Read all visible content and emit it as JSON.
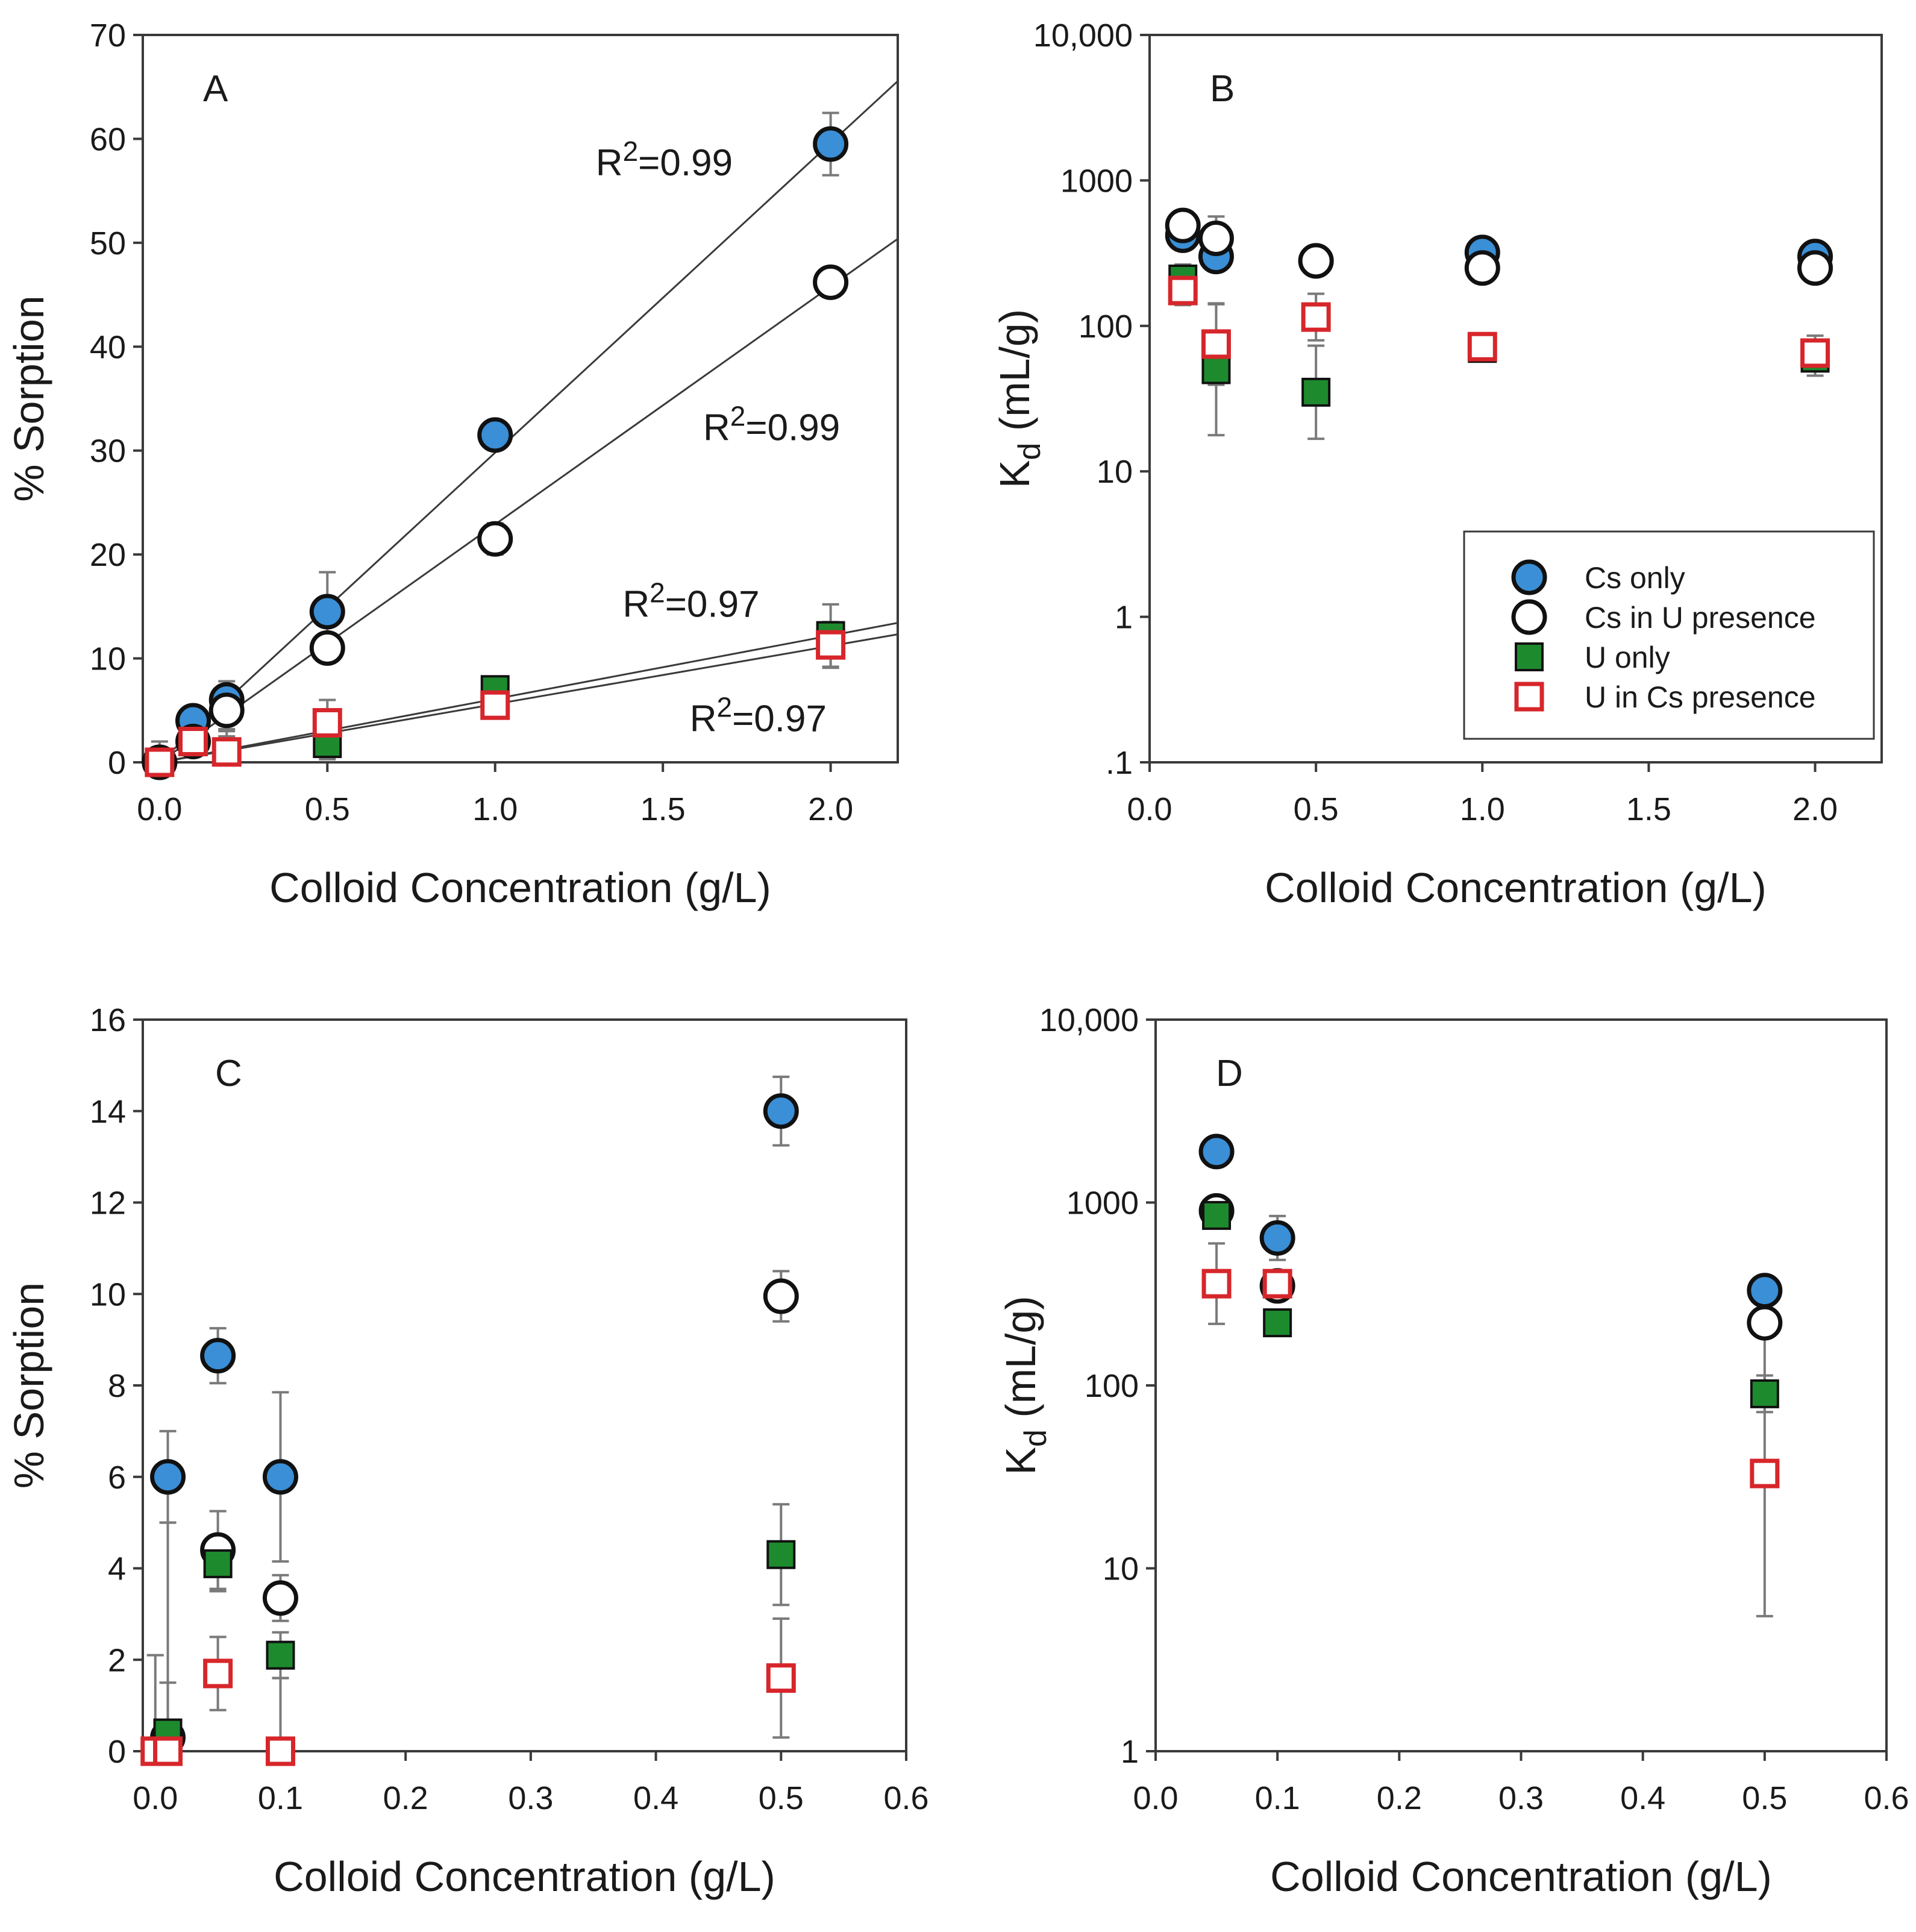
{
  "figure_colors": {
    "cs_only": "#3a8fd6",
    "cs_in_u": "#ffffff",
    "u_only": "#1e8a2e",
    "u_in_cs": "#ffffff",
    "u_in_cs_edge": "#d7262b",
    "marker_edge": "#111111"
  },
  "legend": {
    "items": [
      "Cs only",
      "Cs in U presence",
      "U only",
      "U in Cs presence"
    ]
  },
  "chart_data": [
    {
      "id": "A",
      "type": "scatter",
      "panel_label": "A",
      "xlabel": "Colloid Concentration (g/L)",
      "ylabel": "% Sorption",
      "y_scale": "linear",
      "xlim": [
        -0.05,
        2.2
      ],
      "ylim": [
        0,
        70
      ],
      "x_ticks": [
        0.0,
        0.5,
        1.0,
        1.5,
        2.0
      ],
      "x_tick_labels": [
        "0.0",
        "0.5",
        "1.0",
        "1.5",
        "2.0"
      ],
      "y_ticks": [
        0,
        10,
        20,
        30,
        40,
        50,
        60,
        70
      ],
      "y_tick_labels": [
        "0",
        "10",
        "20",
        "30",
        "40",
        "50",
        "60",
        "70"
      ],
      "series": [
        {
          "name": "Cs only",
          "key": "cs_only",
          "marker": "circle",
          "x": [
            0,
            0.1,
            0.2,
            0.5,
            1.0,
            2.0
          ],
          "y": [
            0,
            4,
            6,
            14.5,
            31.5,
            59.5
          ],
          "err": [
            2,
            1,
            1.8,
            3.8,
            0.8,
            3
          ]
        },
        {
          "name": "Cs in U presence",
          "key": "cs_in_u",
          "marker": "circle",
          "x": [
            0,
            0.1,
            0.2,
            0.5,
            1.0,
            2.0
          ],
          "y": [
            0,
            2,
            5,
            11,
            21.5,
            46.2
          ],
          "err": [
            1,
            1,
            1.8,
            0.8,
            1.5,
            0.8
          ]
        },
        {
          "name": "U only",
          "key": "u_only",
          "marker": "square",
          "x": [
            0,
            0.1,
            0.2,
            0.5,
            1.0,
            2.0
          ],
          "y": [
            0,
            2,
            1,
            1.8,
            7,
            12.2
          ],
          "err": [
            1,
            0.8,
            2,
            1.5,
            0.8,
            3
          ]
        },
        {
          "name": "U in Cs presence",
          "key": "u_in_cs",
          "marker": "square",
          "x": [
            0,
            0.1,
            0.2,
            0.5,
            1.0,
            2.0
          ],
          "y": [
            0,
            2,
            1,
            3.8,
            5.5,
            11.3
          ],
          "err": [
            1,
            0.8,
            1.5,
            2.2,
            0.8,
            2.2
          ]
        }
      ],
      "fit_lines": [
        {
          "series": "Cs only",
          "slope": 29.8,
          "intercept": 0
        },
        {
          "series": "Cs in U presence",
          "slope": 22.9,
          "intercept": 0
        },
        {
          "series": "U only",
          "slope": 6.1,
          "intercept": 0
        },
        {
          "series": "U in Cs presence",
          "slope": 5.6,
          "intercept": 0
        }
      ],
      "annotations": [
        {
          "text_base": "R",
          "sup": "2",
          "text_rest": "=0.99",
          "x": 1.3,
          "y": 56.5
        },
        {
          "text_base": "R",
          "sup": "2",
          "text_rest": "=0.99",
          "x": 1.62,
          "y": 31
        },
        {
          "text_base": "R",
          "sup": "2",
          "text_rest": "=0.97",
          "x": 1.38,
          "y": 14
        },
        {
          "text_base": "R",
          "sup": "2",
          "text_rest": "=0.97",
          "x": 1.58,
          "y": 3
        }
      ]
    },
    {
      "id": "B",
      "type": "scatter",
      "panel_label": "B",
      "xlabel": "Colloid Concentration (g/L)",
      "ylabel_base": "K",
      "ylabel_sub": "d",
      "ylabel_rest": " (mL/g)",
      "y_scale": "log",
      "xlim": [
        0,
        2.2
      ],
      "ylim": [
        0.1,
        10000
      ],
      "x_ticks": [
        0.0,
        0.5,
        1.0,
        1.5,
        2.0
      ],
      "x_tick_labels": [
        "0.0",
        "0.5",
        "1.0",
        "1.5",
        "2.0"
      ],
      "y_ticks": [
        0.1,
        1,
        10,
        100,
        1000,
        10000
      ],
      "y_tick_labels": [
        ".1",
        "1",
        "10",
        "100",
        "1000",
        "10,000"
      ],
      "legend_position": "bottom-right",
      "series": [
        {
          "name": "Cs only",
          "key": "cs_only",
          "marker": "circle",
          "x": [
            0.1,
            0.2,
            0.5,
            1.0,
            2.0
          ],
          "y": [
            420,
            300,
            280,
            320,
            300
          ],
          "err": [
            0,
            0,
            0,
            0,
            0
          ]
        },
        {
          "name": "Cs in U presence",
          "key": "cs_in_u",
          "marker": "circle",
          "x": [
            0.1,
            0.2,
            0.5,
            1.0,
            2.0
          ],
          "y": [
            490,
            400,
            280,
            250,
            250
          ],
          "err": [
            0,
            0.15,
            0.1,
            0,
            0
          ]
        },
        {
          "name": "U only",
          "key": "u_only",
          "marker": "square",
          "x": [
            0.1,
            0.2,
            0.5,
            1.0,
            2.0
          ],
          "y": [
            210,
            50,
            35,
            70,
            60
          ],
          "err": [
            0.1,
            0.45,
            0.32,
            0,
            0.12
          ]
        },
        {
          "name": "U in Cs presence",
          "key": "u_in_cs",
          "marker": "square",
          "x": [
            0.1,
            0.2,
            0.5,
            1.0,
            2.0
          ],
          "y": [
            175,
            75,
            115,
            72,
            65
          ],
          "err": [
            0.1,
            0.28,
            0.16,
            0,
            0.12
          ]
        }
      ]
    },
    {
      "id": "C",
      "type": "scatter",
      "panel_label": "C",
      "xlabel": "Colloid Concentration (g/L)",
      "ylabel": "% Sorption",
      "y_scale": "linear",
      "xlim": [
        -0.01,
        0.6
      ],
      "ylim": [
        0,
        16
      ],
      "x_ticks": [
        0.0,
        0.1,
        0.2,
        0.3,
        0.4,
        0.5,
        0.6
      ],
      "x_tick_labels": [
        "0.0",
        "0.1",
        "0.2",
        "0.3",
        "0.4",
        "0.5",
        "0.6"
      ],
      "y_ticks": [
        0,
        2,
        4,
        6,
        8,
        10,
        12,
        14,
        16
      ],
      "y_tick_labels": [
        "0",
        "2",
        "4",
        "6",
        "8",
        "10",
        "12",
        "14",
        "16"
      ],
      "series": [
        {
          "name": "Cs only",
          "key": "cs_only",
          "marker": "circle",
          "x": [
            0.01,
            0.05,
            0.1,
            0.5
          ],
          "y": [
            6,
            8.65,
            6,
            14
          ],
          "err": [
            1,
            0.6,
            1.85,
            0.75
          ]
        },
        {
          "name": "Cs in U presence",
          "key": "cs_in_u",
          "marker": "circle",
          "x": [
            0.01,
            0.05,
            0.1,
            0.5
          ],
          "y": [
            0.3,
            4.4,
            3.35,
            9.95
          ],
          "err": [
            0,
            0.85,
            0.5,
            0.55
          ]
        },
        {
          "name": "U only",
          "key": "u_only",
          "marker": "square",
          "x": [
            0.01,
            0.05,
            0.1,
            0.5
          ],
          "y": [
            0.4,
            4.1,
            2.1,
            4.3
          ],
          "err": [
            1.1,
            0.6,
            0.5,
            1.1
          ]
        },
        {
          "name": "U in Cs presence",
          "key": "u_in_cs",
          "marker": "square",
          "x": [
            0,
            0.01,
            0.05,
            0.1,
            0.5
          ],
          "y": [
            0,
            0,
            1.7,
            0,
            1.6
          ],
          "err": [
            2.1,
            5,
            0.8,
            1.6,
            1.3
          ]
        }
      ]
    },
    {
      "id": "D",
      "type": "scatter",
      "panel_label": "D",
      "xlabel": "Colloid Concentration (g/L)",
      "ylabel_base": "K",
      "ylabel_sub": "d",
      "ylabel_rest": " (mL/g)",
      "y_scale": "log",
      "xlim": [
        0,
        0.6
      ],
      "ylim": [
        1,
        10000
      ],
      "x_ticks": [
        0.0,
        0.1,
        0.2,
        0.3,
        0.4,
        0.5,
        0.6
      ],
      "x_tick_labels": [
        "0.0",
        "0.1",
        "0.2",
        "0.3",
        "0.4",
        "0.5",
        "0.6"
      ],
      "y_ticks": [
        1,
        10,
        100,
        1000,
        10000
      ],
      "y_tick_labels": [
        "1",
        "10",
        "100",
        "1000",
        "10,000"
      ],
      "series": [
        {
          "name": "Cs only",
          "key": "cs_only",
          "marker": "circle",
          "x": [
            0.05,
            0.1,
            0.5
          ],
          "y": [
            1900,
            640,
            330
          ],
          "err": [
            0,
            0.12,
            0
          ]
        },
        {
          "name": "Cs in U presence",
          "key": "cs_in_u",
          "marker": "circle",
          "x": [
            0.05,
            0.1,
            0.5
          ],
          "y": [
            900,
            350,
            220
          ],
          "err": [
            0,
            0,
            0
          ]
        },
        {
          "name": "U only",
          "key": "u_only",
          "marker": "square",
          "x": [
            0.05,
            0.1,
            0.5
          ],
          "y": [
            850,
            220,
            90
          ],
          "err": [
            0,
            0,
            0.1
          ]
        },
        {
          "name": "U in Cs presence",
          "key": "u_in_cs",
          "marker": "square",
          "x": [
            0.05,
            0.1,
            0.5
          ],
          "y": [
            360,
            360,
            33
          ],
          "err": [
            0.22,
            0,
            0.78
          ]
        }
      ]
    }
  ]
}
